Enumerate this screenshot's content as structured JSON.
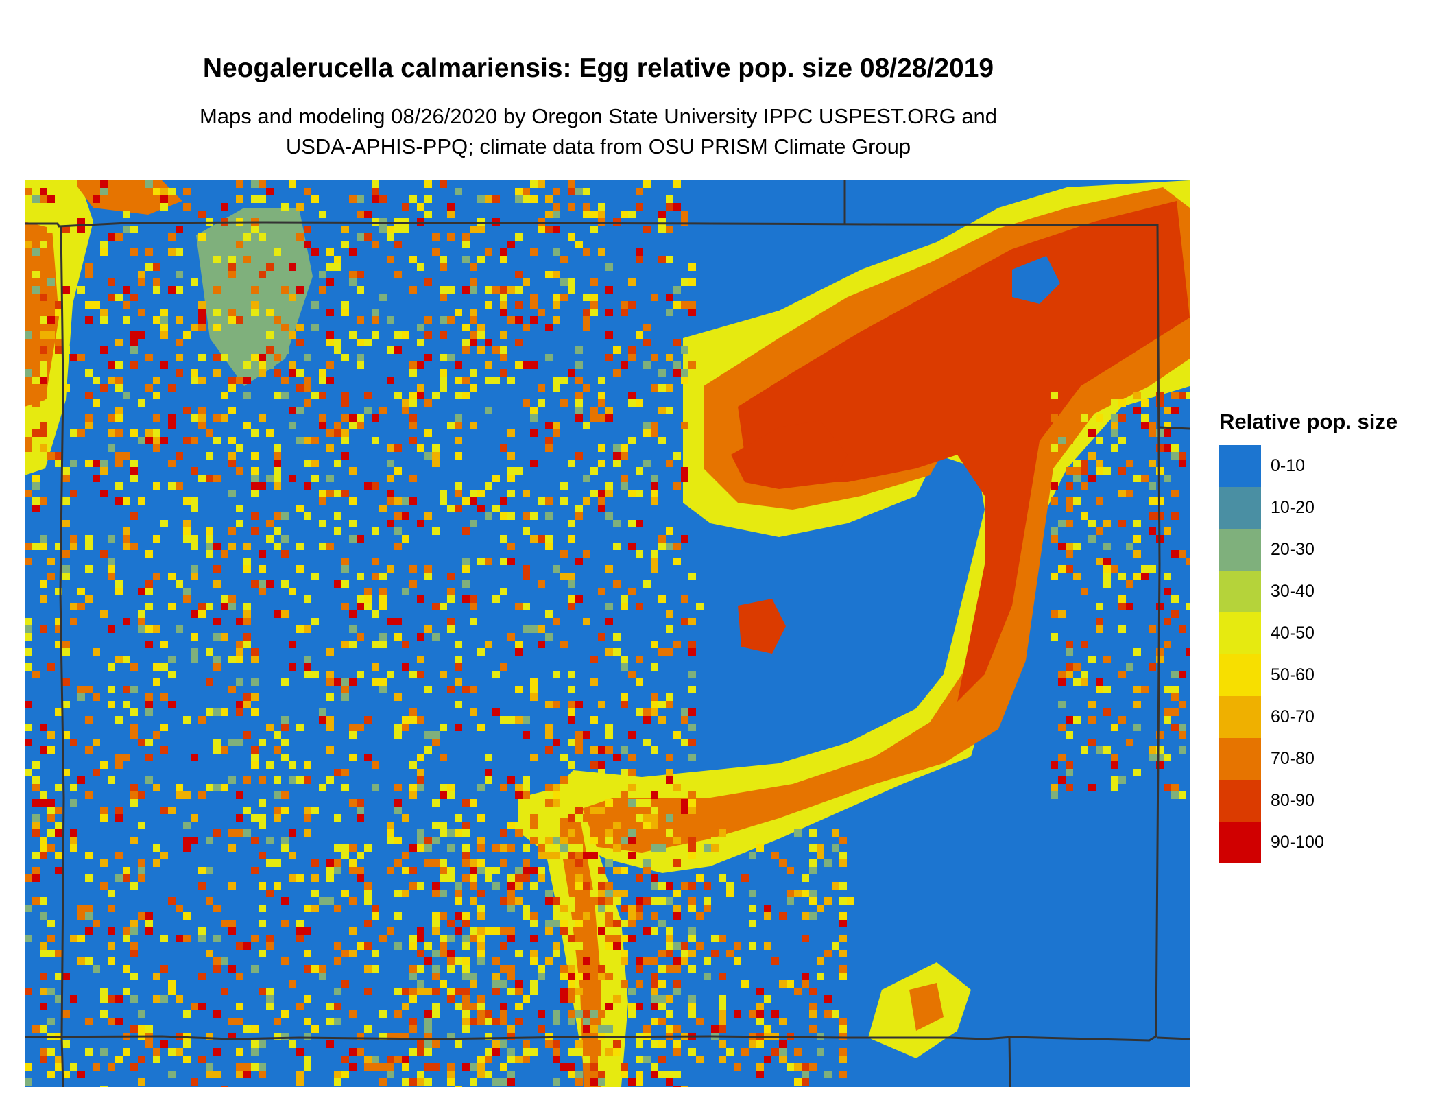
{
  "title": "Neogalerucella calmariensis: Egg relative pop. size 08/28/2019",
  "subtitle_line1": "Maps and modeling 08/26/2020 by Oregon State University IPPC USPEST.ORG and",
  "subtitle_line2": "USDA-APHIS-PPQ; climate data from OSU PRISM Climate Group",
  "legend": {
    "title": "Relative pop. size",
    "classes": [
      {
        "label": "0-10",
        "color": "#1c75d0"
      },
      {
        "label": "10-20",
        "color": "#4a8fa3"
      },
      {
        "label": "20-30",
        "color": "#7fb07c"
      },
      {
        "label": "30-40",
        "color": "#b5d33a"
      },
      {
        "label": "40-50",
        "color": "#e6ea10"
      },
      {
        "label": "50-60",
        "color": "#f7df00"
      },
      {
        "label": "60-70",
        "color": "#efb000"
      },
      {
        "label": "70-80",
        "color": "#e67400"
      },
      {
        "label": "80-90",
        "color": "#db3b00"
      },
      {
        "label": "90-100",
        "color": "#d00000"
      }
    ]
  },
  "colors": {
    "boundary": "#333333",
    "background_class": "#1c75d0"
  }
}
